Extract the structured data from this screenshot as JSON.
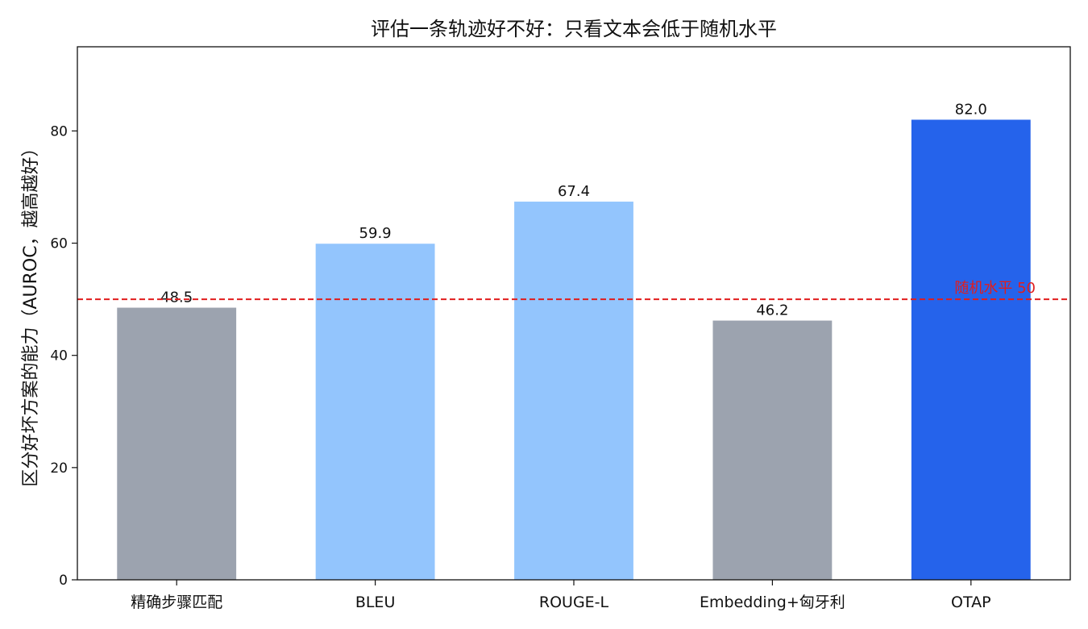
{
  "chart_data": {
    "type": "bar",
    "title": "评估一条轨迹好不好：只看文本会低于随机水平",
    "xlabel": "",
    "ylabel": "区分好坏方案的能力（AUROC，越高越好）",
    "ylim": [
      0,
      95
    ],
    "yticks": [
      0,
      20,
      40,
      60,
      80
    ],
    "grid": false,
    "categories": [
      "精确步骤匹配",
      "BLEU",
      "ROUGE-L",
      "Embedding+匈牙利",
      "OTAP"
    ],
    "values": [
      48.5,
      59.9,
      67.4,
      46.2,
      82.0
    ],
    "value_labels": [
      "48.5",
      "59.9",
      "67.4",
      "46.2",
      "82.0"
    ],
    "bar_colors": [
      "#9ca3af",
      "#93c5fd",
      "#93c5fd",
      "#9ca3af",
      "#2563eb"
    ],
    "reference_line": {
      "value": 50,
      "label": "随机水平 50",
      "color": "#e11d1d",
      "style": "dashed"
    }
  }
}
